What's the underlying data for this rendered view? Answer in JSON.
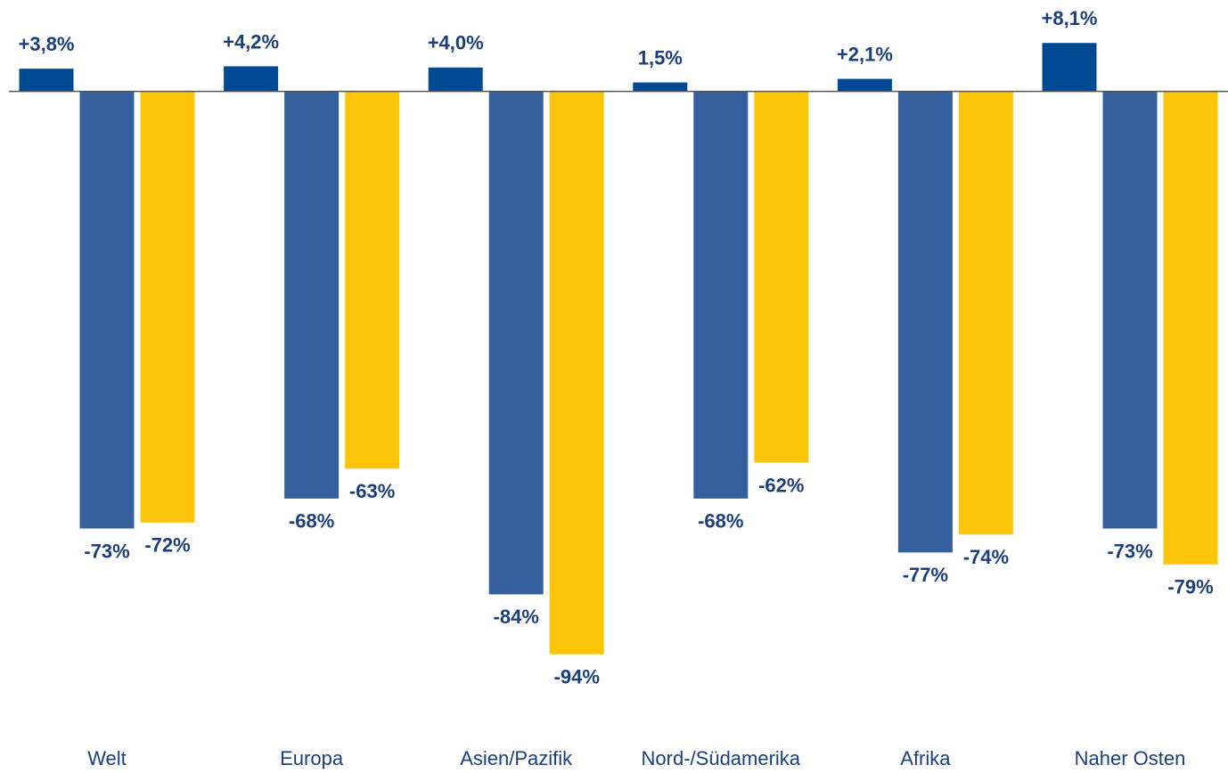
{
  "chart_data": {
    "type": "bar",
    "categories": [
      "Welt",
      "Europa",
      "Asien/Pazifik",
      "Nord-/Südamerika",
      "Afrika",
      "Naher Osten"
    ],
    "series": [
      {
        "color": "#004a94",
        "values": [
          3.8,
          4.2,
          4.0,
          1.5,
          2.1,
          8.1
        ],
        "value_labels": [
          "+3,8%",
          "+4,2%",
          "+4,0%",
          "1,5%",
          "+2,1%",
          "+8,1%"
        ]
      },
      {
        "color": "#365f9e",
        "values": [
          -73,
          -68,
          -84,
          -68,
          -77,
          -73
        ],
        "value_labels": [
          "-73%",
          "-68%",
          "-84%",
          "-68%",
          "-77%",
          "-73%"
        ]
      },
      {
        "color": "#fcc50a",
        "values": [
          -72,
          -63,
          -94,
          -62,
          -74,
          -79
        ],
        "value_labels": [
          "-72%",
          "-63%",
          "-94%",
          "-62%",
          "-74%",
          "-79%"
        ]
      }
    ],
    "ylim": [
      -100,
      12
    ]
  }
}
